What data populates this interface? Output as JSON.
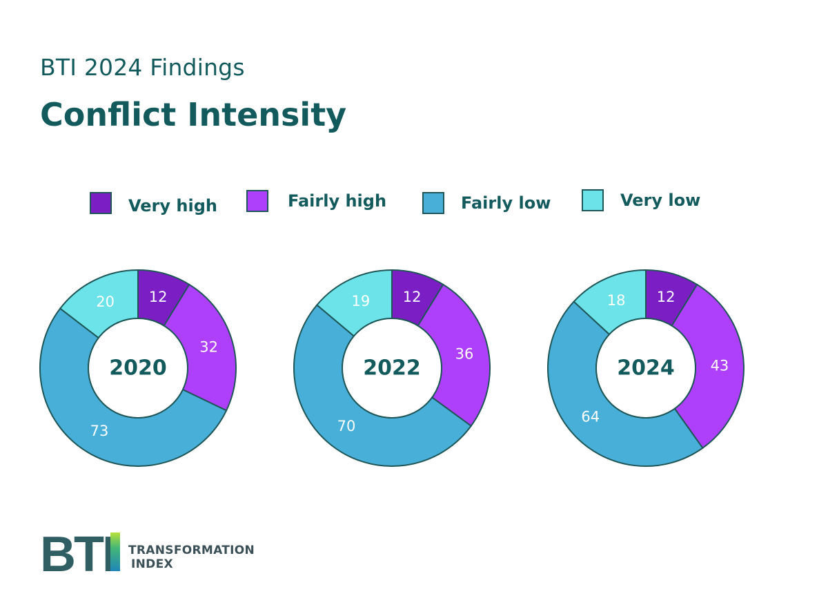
{
  "header": {
    "subtitle": "BTI 2024 Findings",
    "title": "Conflict Intensity"
  },
  "legend": [
    {
      "label": "Very high",
      "color": "#7b1ec3"
    },
    {
      "label": "Fairly high",
      "color": "#ae3ffb"
    },
    {
      "label": "Fairly low",
      "color": "#48afd8"
    },
    {
      "label": "Very low",
      "color": "#6be3e8"
    }
  ],
  "chart_data": [
    {
      "type": "donut",
      "title": "2020",
      "categories": [
        "Very high",
        "Fairly high",
        "Fairly low",
        "Very low"
      ],
      "values": [
        12,
        32,
        73,
        20
      ]
    },
    {
      "type": "donut",
      "title": "2022",
      "categories": [
        "Very high",
        "Fairly high",
        "Fairly low",
        "Very low"
      ],
      "values": [
        12,
        36,
        70,
        19
      ]
    },
    {
      "type": "donut",
      "title": "2024",
      "categories": [
        "Very high",
        "Fairly high",
        "Fairly low",
        "Very low"
      ],
      "values": [
        12,
        43,
        64,
        18
      ]
    }
  ],
  "logo": {
    "mark": "BTI",
    "line1": "TRANSFORMATION",
    "line2": "INDEX"
  }
}
